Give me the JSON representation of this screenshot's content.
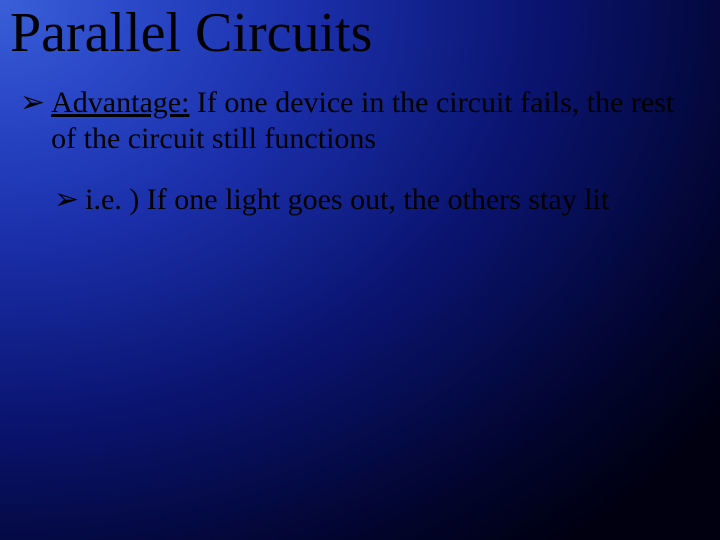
{
  "slide": {
    "title": "Parallel Circuits",
    "title_color": "#000000",
    "title_fontsize": 56,
    "background": {
      "type": "radial-gradient",
      "center": "top-left",
      "colors": [
        "#3a5fd8",
        "#2a48c8",
        "#1a2ea8",
        "#0a1470",
        "#020530",
        "#000010"
      ]
    },
    "bullets": [
      {
        "level": 1,
        "marker": "➢",
        "label_underlined": "Advantage:",
        "text_rest": " If one device in the circuit fails, the rest of the circuit still functions",
        "fontsize": 30,
        "color": "#000000"
      },
      {
        "level": 2,
        "marker": "➢",
        "text": "i.e. ) If one light goes out, the others stay lit",
        "fontsize": 30,
        "color": "#000000"
      }
    ]
  }
}
